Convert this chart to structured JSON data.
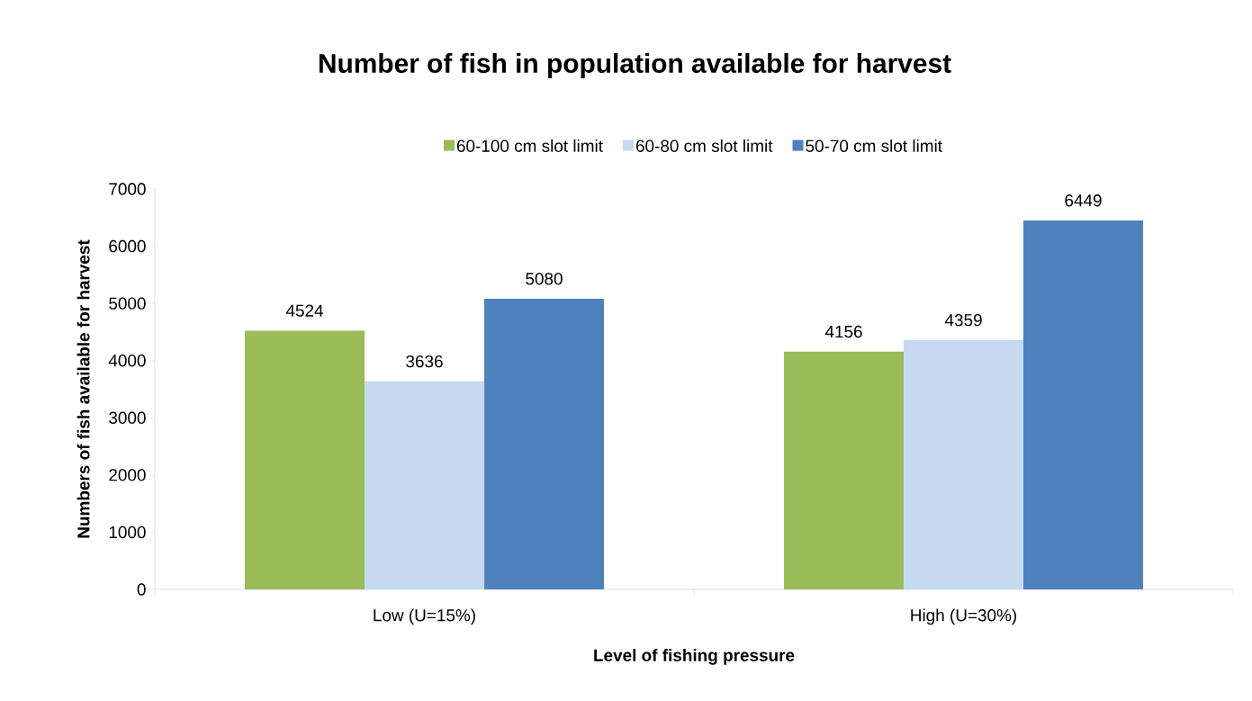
{
  "chart_data": {
    "type": "bar",
    "title": "Number of fish in population available for harvest",
    "xlabel": "Level of fishing pressure",
    "ylabel": "Numbers of fish available  for harvest",
    "categories": [
      "Low (U=15%)",
      "High (U=30%)"
    ],
    "series": [
      {
        "name": "60-100 cm slot limit",
        "color": "#9bbb59",
        "values": [
          4524,
          4156
        ]
      },
      {
        "name": "60-80 cm slot limit",
        "color": "#c6d9f0",
        "values": [
          3636,
          4359
        ]
      },
      {
        "name": "50-70 cm slot limit",
        "color": "#4f81bd",
        "values": [
          5080,
          6449
        ]
      }
    ],
    "ylim": [
      0,
      7000
    ],
    "yticks": [
      0,
      1000,
      2000,
      3000,
      4000,
      5000,
      6000,
      7000
    ],
    "data_labels": true,
    "legend": "top",
    "grid": false
  }
}
